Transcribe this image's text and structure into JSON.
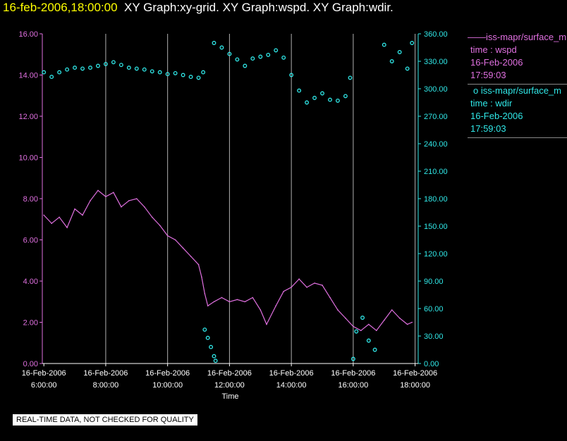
{
  "header": {
    "date_time": "16-feb-2006,18:00:00",
    "graphs": "XY Graph:xy-grid.  XY Graph:wspd.  XY Graph:wdir."
  },
  "legend": [
    {
      "symbol": "——",
      "source": "iss-mapr/surface_m",
      "field": "time : wspd",
      "date": "16-Feb-2006",
      "time": "17:59:03",
      "color": "#e070e0"
    },
    {
      "symbol": "o",
      "source": "iss-mapr/surface_m",
      "field": "time : wdir",
      "date": "16-Feb-2006",
      "time": "17:59:03",
      "color": "#30e8e8"
    }
  ],
  "notice": "REAL-TIME DATA, NOT CHECKED FOR QUALITY",
  "colors": {
    "background": "#000000",
    "grid": "#b0b0b0",
    "wspd": "#e070e0",
    "wdir": "#30e8e8",
    "text": "#ffffff",
    "title_date": "#ffff00"
  },
  "chart_data": {
    "type": "line",
    "xlabel": "Time",
    "xlim": [
      5.95,
      18.1
    ],
    "x_ticks": [
      {
        "value": 6,
        "date": "16-Feb-2006",
        "time": "6:00:00"
      },
      {
        "value": 8,
        "date": "16-Feb-2006",
        "time": "8:00:00"
      },
      {
        "value": 10,
        "date": "16-Feb-2006",
        "time": "10:00:00"
      },
      {
        "value": 12,
        "date": "16-Feb-2006",
        "time": "12:00:00"
      },
      {
        "value": 14,
        "date": "16-Feb-2006",
        "time": "14:00:00"
      },
      {
        "value": 16,
        "date": "16-Feb-2006",
        "time": "16:00:00"
      },
      {
        "value": 18,
        "date": "16-Feb-2006",
        "time": "18:00:00"
      }
    ],
    "grid_x": [
      8,
      10,
      12,
      14,
      16,
      18
    ],
    "left_axis": {
      "ylim": [
        0,
        16
      ],
      "ticks": [
        "0.00",
        "2.00",
        "4.00",
        "6.00",
        "8.00",
        "10.00",
        "12.00",
        "14.00",
        "16.00"
      ]
    },
    "right_axis": {
      "ylim": [
        0,
        360
      ],
      "ticks": [
        "0.00",
        "30.00",
        "60.00",
        "90.00",
        "120.00",
        "150.00",
        "180.00",
        "210.00",
        "240.00",
        "270.00",
        "300.00",
        "330.00",
        "360.00"
      ]
    },
    "series": [
      {
        "name": "iss-mapr/surface_m",
        "axis": "left",
        "style": "line",
        "points": [
          [
            6.0,
            7.2
          ],
          [
            6.25,
            6.8
          ],
          [
            6.5,
            7.1
          ],
          [
            6.75,
            6.6
          ],
          [
            7.0,
            7.5
          ],
          [
            7.25,
            7.2
          ],
          [
            7.5,
            7.9
          ],
          [
            7.75,
            8.4
          ],
          [
            8.0,
            8.1
          ],
          [
            8.25,
            8.3
          ],
          [
            8.5,
            7.6
          ],
          [
            8.75,
            7.9
          ],
          [
            9.0,
            8.0
          ],
          [
            9.25,
            7.6
          ],
          [
            9.5,
            7.1
          ],
          [
            9.75,
            6.7
          ],
          [
            10.0,
            6.2
          ],
          [
            10.25,
            6.0
          ],
          [
            10.5,
            5.6
          ],
          [
            10.75,
            5.2
          ],
          [
            11.0,
            4.8
          ],
          [
            11.1,
            4.2
          ],
          [
            11.2,
            3.4
          ],
          [
            11.3,
            2.8
          ],
          [
            11.5,
            3.0
          ],
          [
            11.75,
            3.2
          ],
          [
            12.0,
            3.0
          ],
          [
            12.25,
            3.1
          ],
          [
            12.5,
            3.0
          ],
          [
            12.75,
            3.2
          ],
          [
            13.0,
            2.6
          ],
          [
            13.2,
            1.9
          ],
          [
            13.5,
            2.8
          ],
          [
            13.75,
            3.5
          ],
          [
            14.0,
            3.7
          ],
          [
            14.25,
            4.1
          ],
          [
            14.5,
            3.7
          ],
          [
            14.75,
            3.9
          ],
          [
            15.0,
            3.8
          ],
          [
            15.25,
            3.2
          ],
          [
            15.5,
            2.6
          ],
          [
            15.75,
            2.2
          ],
          [
            16.0,
            1.8
          ],
          [
            16.25,
            1.6
          ],
          [
            16.5,
            1.9
          ],
          [
            16.75,
            1.6
          ],
          [
            17.0,
            2.1
          ],
          [
            17.25,
            2.6
          ],
          [
            17.5,
            2.2
          ],
          [
            17.75,
            1.9
          ],
          [
            17.9,
            2.0
          ]
        ]
      },
      {
        "name": "iss-mapr/surface_m",
        "axis": "right",
        "style": "scatter",
        "points": [
          [
            6.0,
            318
          ],
          [
            6.25,
            313
          ],
          [
            6.5,
            318
          ],
          [
            6.75,
            321
          ],
          [
            7.0,
            323
          ],
          [
            7.25,
            322
          ],
          [
            7.5,
            323
          ],
          [
            7.75,
            325
          ],
          [
            8.0,
            327
          ],
          [
            8.25,
            329
          ],
          [
            8.5,
            326
          ],
          [
            8.75,
            323
          ],
          [
            9.0,
            322
          ],
          [
            9.25,
            321
          ],
          [
            9.5,
            319
          ],
          [
            9.75,
            318
          ],
          [
            10.0,
            316
          ],
          [
            10.25,
            317
          ],
          [
            10.5,
            315
          ],
          [
            10.75,
            313
          ],
          [
            11.0,
            312
          ],
          [
            11.15,
            318
          ],
          [
            11.2,
            37
          ],
          [
            11.3,
            28
          ],
          [
            11.4,
            18
          ],
          [
            11.5,
            8
          ],
          [
            11.55,
            3
          ],
          [
            11.5,
            350
          ],
          [
            11.75,
            345
          ],
          [
            12.0,
            338
          ],
          [
            12.25,
            332
          ],
          [
            12.5,
            325
          ],
          [
            12.75,
            333
          ],
          [
            13.0,
            335
          ],
          [
            13.25,
            337
          ],
          [
            13.5,
            342
          ],
          [
            13.75,
            334
          ],
          [
            14.0,
            315
          ],
          [
            14.25,
            298
          ],
          [
            14.5,
            285
          ],
          [
            14.75,
            290
          ],
          [
            15.0,
            295
          ],
          [
            15.25,
            288
          ],
          [
            15.5,
            287
          ],
          [
            15.75,
            292
          ],
          [
            15.9,
            312
          ],
          [
            16.0,
            5
          ],
          [
            16.1,
            35
          ],
          [
            16.3,
            50
          ],
          [
            16.5,
            25
          ],
          [
            16.7,
            15
          ],
          [
            17.0,
            348
          ],
          [
            17.25,
            330
          ],
          [
            17.5,
            340
          ],
          [
            17.75,
            322
          ],
          [
            17.9,
            350
          ]
        ]
      }
    ]
  }
}
